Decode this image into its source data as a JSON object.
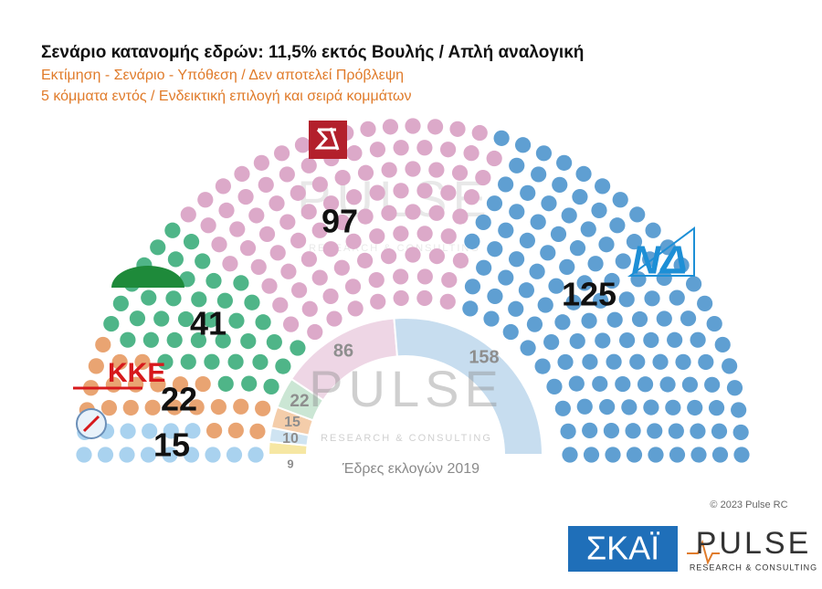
{
  "chart_data": {
    "type": "parliament",
    "title": "Σενάριο κατανομής εδρών: 11,5% εκτός Βουλής / Απλή αναλογική",
    "subtitle": [
      "Εκτίμηση - Σενάριο - Υπόθεση / Δεν αποτελεί Πρόβλεψη",
      "5 κόμματα εντός / Ενδεικτική επιλογή και σειρά κομμάτων"
    ],
    "values": [
      15,
      22,
      41,
      97,
      125
    ],
    "colors": [
      "#a9d2ef",
      "#e9a472",
      "#4fb588",
      "#dca9c9",
      "#5f9fd2"
    ],
    "logos": [
      "ΚΚΕ",
      "ΝΔ"
    ],
    "inner": {
      "type": "half-donut",
      "values": [
        9,
        10,
        15,
        22,
        86,
        158
      ],
      "colors": [
        "#f6e7a3",
        "#cfe4f2",
        "#f4cdaa",
        "#cbe6d4",
        "#eed6e5",
        "#c7ddef"
      ],
      "caption": "Έδρες εκλογών 2019"
    }
  },
  "watermark": {
    "brand": "PULSE",
    "tagline": "RESEARCH & CONSULTING"
  },
  "footer": {
    "copyright": "© 2023 Pulse RC",
    "channel": "ΣΚΑΪ",
    "brand": "PULSE",
    "tagline": "RESEARCH & CONSULTING"
  }
}
